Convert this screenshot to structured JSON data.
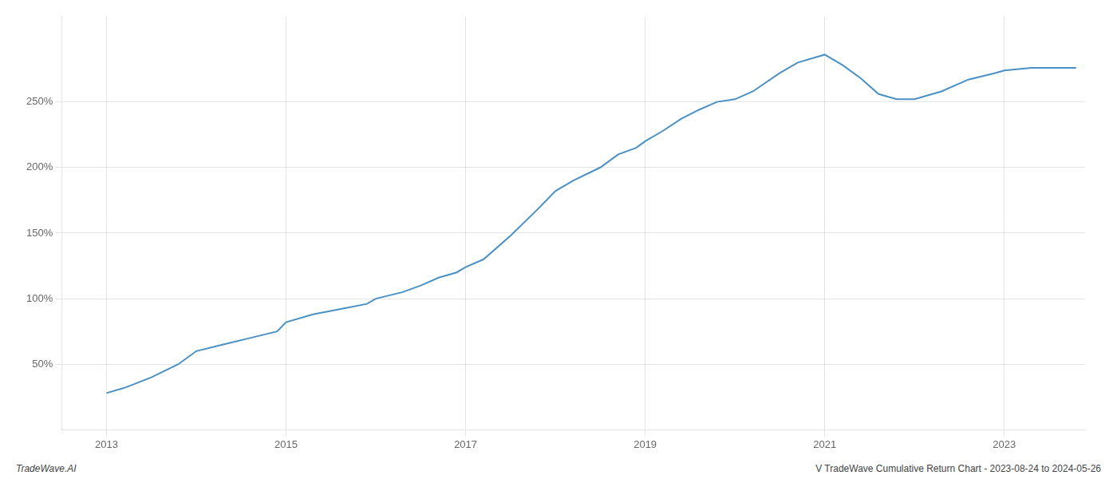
{
  "chart_data": {
    "type": "line",
    "annotations": [
      "TradeWave.AI",
      "V TradeWave Cumulative Return Chart - 2023-08-24 to 2024-05-26"
    ],
    "color": "#4a90c4",
    "grid": true,
    "x": [
      2013.0,
      2013.2,
      2013.5,
      2013.8,
      2014.0,
      2014.3,
      2014.6,
      2014.9,
      2015.0,
      2015.3,
      2015.6,
      2015.9,
      2016.0,
      2016.3,
      2016.5,
      2016.7,
      2016.9,
      2017.0,
      2017.2,
      2017.5,
      2017.8,
      2018.0,
      2018.2,
      2018.5,
      2018.7,
      2018.9,
      2019.0,
      2019.2,
      2019.4,
      2019.6,
      2019.8,
      2020.0,
      2020.2,
      2020.5,
      2020.7,
      2020.9,
      2021.0,
      2021.2,
      2021.4,
      2021.6,
      2021.8,
      2022.0,
      2022.3,
      2022.6,
      2022.9,
      2023.0,
      2023.3,
      2023.6,
      2023.8
    ],
    "values": [
      28,
      32,
      40,
      50,
      60,
      65,
      70,
      75,
      82,
      88,
      92,
      96,
      100,
      105,
      110,
      116,
      120,
      124,
      130,
      148,
      168,
      182,
      190,
      200,
      210,
      215,
      220,
      228,
      237,
      244,
      250,
      252,
      258,
      272,
      280,
      284,
      286,
      278,
      268,
      256,
      252,
      252,
      258,
      267,
      272,
      274,
      276,
      276,
      276
    ],
    "xlim": [
      2012.5,
      2023.9
    ],
    "xticks": [
      2013,
      2015,
      2017,
      2019,
      2021,
      2023
    ],
    "ylim": [
      0,
      315
    ],
    "yticks": [
      {
        "value": 50,
        "label": "50%"
      },
      {
        "value": 100,
        "label": "100%"
      },
      {
        "value": 150,
        "label": "150%"
      },
      {
        "value": 200,
        "label": "200%"
      },
      {
        "value": 250,
        "label": "250%"
      }
    ]
  }
}
